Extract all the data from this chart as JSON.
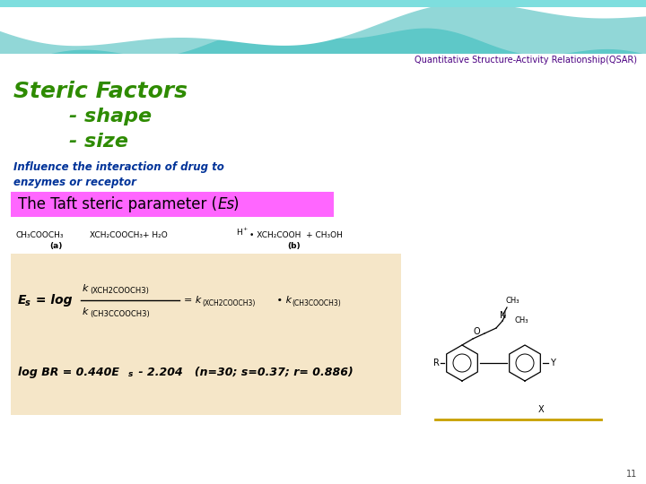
{
  "title_text": "Quantitative Structure-Activity Relationship(QSAR)",
  "title_color": "#4B0082",
  "title_fontsize": 7,
  "heading1": "Steric Factors",
  "heading1_color": "#2E8B00",
  "heading1_fontsize": 18,
  "bullet1": "        - shape",
  "bullet2": "        - size",
  "bullet_color": "#2E8B00",
  "bullet_fontsize": 16,
  "influence_text": "Influence the interaction of drug to\nenzymes or receptor",
  "influence_color": "#003399",
  "influence_fontsize": 8.5,
  "taft_bg": "#FF66FF",
  "taft_fontsize": 12,
  "eq_bg": "#F5E6C8",
  "slide_bg": "#FFFFFF",
  "page_num": "11",
  "wave_teal": "#5EC8C8",
  "wave_light": "#A8DEDE",
  "wave_white": "#FFFFFF"
}
